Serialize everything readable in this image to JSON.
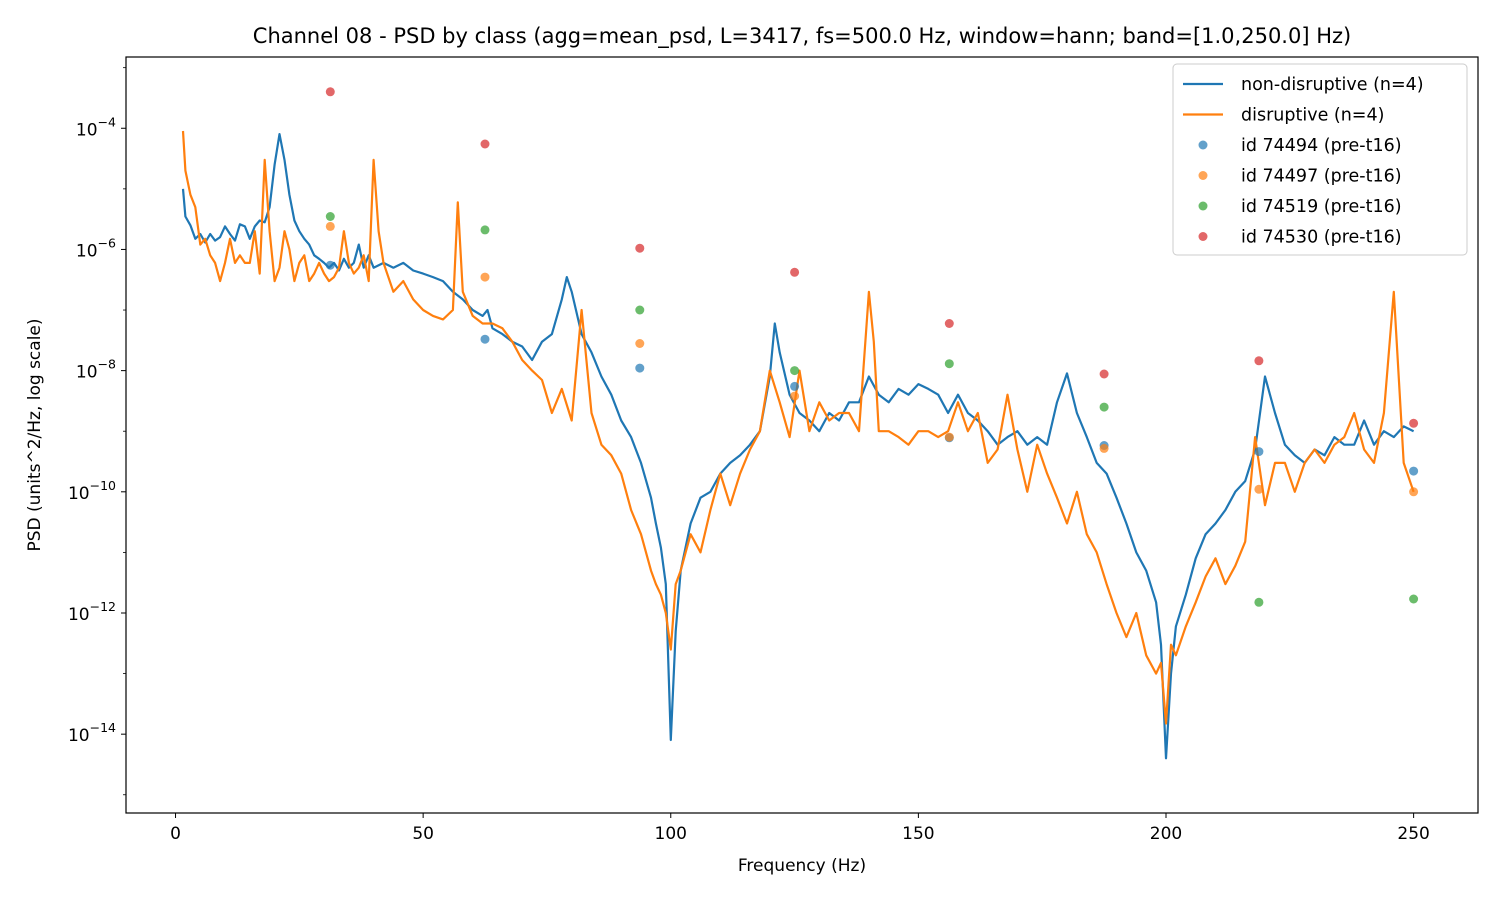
{
  "chart_data": {
    "type": "line",
    "title": "Channel 08 - PSD by class (agg=mean_psd, L=3417, fs=500.0 Hz, window=hann; band=[1.0,250.0] Hz)",
    "xlabel": "Frequency (Hz)",
    "ylabel": "PSD (units^2/Hz, log scale)",
    "xlim": [
      -10,
      263
    ],
    "ylim": [
      5e-16,
      0.0015
    ],
    "yscale": "log",
    "grid": false,
    "legend_position": "top-right",
    "xticks": [
      {
        "value": 0,
        "label": "0"
      },
      {
        "value": 50,
        "label": "50"
      },
      {
        "value": 100,
        "label": "100"
      },
      {
        "value": 150,
        "label": "150"
      },
      {
        "value": 200,
        "label": "200"
      },
      {
        "value": 250,
        "label": "250"
      }
    ],
    "yticks": [
      {
        "exp": -14,
        "base": "10",
        "sup": "−14"
      },
      {
        "exp": -12,
        "base": "10",
        "sup": "−12"
      },
      {
        "exp": -10,
        "base": "10",
        "sup": "−10"
      },
      {
        "exp": -8,
        "base": "10",
        "sup": "−8"
      },
      {
        "exp": -6,
        "base": "10",
        "sup": "−6"
      },
      {
        "exp": -4,
        "base": "10",
        "sup": "−4"
      }
    ],
    "series": [
      {
        "name": "non-disruptive (n=4)",
        "color": "#1f77b4",
        "x": [
          1.5,
          2,
          3,
          4,
          5,
          6,
          7,
          8,
          9,
          10,
          11,
          12,
          13,
          14,
          15,
          16,
          17,
          18,
          19,
          20,
          21,
          22,
          23,
          24,
          25,
          26,
          27,
          28,
          29,
          30,
          31,
          32,
          33,
          34,
          35,
          36,
          37,
          38,
          39,
          40,
          42,
          44,
          46,
          48,
          50,
          52,
          54,
          56,
          58,
          60,
          62,
          63,
          64,
          66,
          68,
          70,
          72,
          74,
          76,
          78,
          79,
          80,
          82,
          84,
          86,
          88,
          90,
          92,
          94,
          96,
          97,
          98,
          99,
          100,
          101,
          102,
          104,
          106,
          108,
          110,
          112,
          114,
          116,
          118,
          120,
          121,
          122,
          124,
          126,
          128,
          130,
          132,
          134,
          136,
          138,
          140,
          142,
          144,
          146,
          148,
          150,
          152,
          154,
          156,
          158,
          160,
          162,
          164,
          166,
          168,
          170,
          172,
          174,
          176,
          178,
          180,
          182,
          184,
          186,
          188,
          190,
          192,
          194,
          196,
          198,
          199,
          200,
          201,
          202,
          204,
          206,
          208,
          210,
          212,
          214,
          216,
          218,
          220,
          222,
          224,
          226,
          228,
          230,
          232,
          234,
          236,
          238,
          240,
          242,
          244,
          246,
          248,
          250
        ],
        "y": [
          1e-05,
          3.5e-06,
          2.5e-06,
          1.5e-06,
          1.8e-06,
          1.3e-06,
          1.8e-06,
          1.4e-06,
          1.6e-06,
          2.4e-06,
          1.8e-06,
          1.4e-06,
          2.6e-06,
          2.4e-06,
          1.5e-06,
          2.4e-06,
          3e-06,
          2.8e-06,
          5e-06,
          2.5e-05,
          8e-05,
          3e-05,
          8e-06,
          3e-06,
          2e-06,
          1.5e-06,
          1.2e-06,
          8e-07,
          7e-07,
          6e-07,
          5e-07,
          6e-07,
          4.5e-07,
          7e-07,
          5e-07,
          6e-07,
          1.2e-06,
          5e-07,
          8e-07,
          5e-07,
          6e-07,
          5e-07,
          6e-07,
          4.5e-07,
          4e-07,
          3.5e-07,
          3e-07,
          2e-07,
          1.5e-07,
          1e-07,
          8e-08,
          1e-07,
          5e-08,
          4e-08,
          3e-08,
          2.5e-08,
          1.5e-08,
          3e-08,
          4e-08,
          1.5e-07,
          3.5e-07,
          2e-07,
          4e-08,
          2e-08,
          8e-09,
          4e-09,
          1.5e-09,
          8e-10,
          3e-10,
          8e-11,
          3e-11,
          1.2e-11,
          3e-12,
          8e-15,
          5e-13,
          5e-12,
          3e-11,
          8e-11,
          1e-10,
          2e-10,
          3e-10,
          4e-10,
          6e-10,
          1e-09,
          8e-09,
          6e-08,
          2e-08,
          4e-09,
          2e-09,
          1.5e-09,
          1e-09,
          2e-09,
          1.5e-09,
          3e-09,
          3e-09,
          8e-09,
          4e-09,
          3e-09,
          5e-09,
          4e-09,
          6e-09,
          5e-09,
          4e-09,
          2e-09,
          4e-09,
          2e-09,
          1.5e-09,
          1e-09,
          6e-10,
          8e-10,
          1e-09,
          6e-10,
          8e-10,
          6e-10,
          3e-09,
          9e-09,
          2e-09,
          8e-10,
          3e-10,
          2e-10,
          8e-11,
          3e-11,
          1e-11,
          5e-12,
          1.5e-12,
          3e-13,
          4e-15,
          1e-13,
          6e-13,
          2e-12,
          8e-12,
          2e-11,
          3e-11,
          5e-11,
          1e-10,
          1.5e-10,
          5e-10,
          8e-09,
          2e-09,
          6e-10,
          4e-10,
          3e-10,
          5e-10,
          4e-10,
          8e-10,
          6e-10,
          6e-10,
          1.5e-09,
          6e-10,
          1e-09,
          8e-10,
          1.2e-09,
          1e-09
        ]
      },
      {
        "name": "disruptive (n=4)",
        "color": "#ff7f0e",
        "x": [
          1.5,
          2,
          3,
          4,
          5,
          6,
          7,
          8,
          9,
          10,
          11,
          12,
          13,
          14,
          15,
          16,
          17,
          18,
          19,
          20,
          21,
          22,
          23,
          24,
          25,
          26,
          27,
          28,
          29,
          30,
          31,
          32,
          33,
          34,
          35,
          36,
          37,
          38,
          39,
          40,
          41,
          42,
          44,
          46,
          48,
          50,
          52,
          54,
          56,
          57,
          58,
          60,
          62,
          64,
          66,
          68,
          70,
          72,
          74,
          76,
          78,
          80,
          82,
          84,
          86,
          88,
          90,
          92,
          94,
          96,
          97,
          98,
          99,
          100,
          101,
          102,
          104,
          106,
          108,
          110,
          112,
          114,
          116,
          118,
          120,
          122,
          124,
          126,
          128,
          130,
          132,
          134,
          136,
          138,
          140,
          141,
          142,
          144,
          146,
          148,
          150,
          152,
          154,
          156,
          158,
          160,
          162,
          164,
          166,
          168,
          170,
          172,
          174,
          176,
          178,
          180,
          182,
          184,
          186,
          188,
          190,
          192,
          194,
          196,
          198,
          199,
          200,
          201,
          202,
          204,
          206,
          208,
          210,
          212,
          214,
          216,
          218,
          220,
          222,
          224,
          226,
          228,
          230,
          232,
          234,
          236,
          238,
          240,
          242,
          244,
          246,
          248,
          250
        ],
        "y": [
          9e-05,
          2e-05,
          8e-06,
          5e-06,
          1.2e-06,
          1.5e-06,
          8e-07,
          6e-07,
          3e-07,
          6e-07,
          1.5e-06,
          6e-07,
          8e-07,
          6e-07,
          6e-07,
          2e-06,
          4e-07,
          3e-05,
          2e-06,
          3e-07,
          5e-07,
          2e-06,
          1e-06,
          3e-07,
          6e-07,
          8e-07,
          3e-07,
          4e-07,
          6e-07,
          4e-07,
          3e-07,
          3.5e-07,
          5e-07,
          2e-06,
          6e-07,
          4e-07,
          5e-07,
          8e-07,
          3e-07,
          3e-05,
          2e-06,
          6e-07,
          2e-07,
          3e-07,
          1.5e-07,
          1e-07,
          8e-08,
          7e-08,
          1e-07,
          6e-06,
          2e-07,
          8e-08,
          6e-08,
          6e-08,
          5e-08,
          3e-08,
          1.5e-08,
          1e-08,
          7e-09,
          2e-09,
          5e-09,
          1.5e-09,
          1e-07,
          2e-09,
          6e-10,
          4e-10,
          2e-10,
          5e-11,
          2e-11,
          5e-12,
          3e-12,
          2e-12,
          1e-12,
          2.5e-13,
          3e-12,
          5e-12,
          2e-11,
          1e-11,
          5e-11,
          2e-10,
          6e-11,
          2e-10,
          5e-10,
          1e-09,
          1e-08,
          3e-09,
          8e-10,
          1e-08,
          1e-09,
          3e-09,
          1.5e-09,
          2e-09,
          2e-09,
          1e-09,
          2e-07,
          3e-08,
          1e-09,
          1e-09,
          8e-10,
          6e-10,
          1e-09,
          1e-09,
          8e-10,
          1e-09,
          3e-09,
          1e-09,
          2e-09,
          3e-10,
          5e-10,
          4e-09,
          5e-10,
          1e-10,
          6e-10,
          2e-10,
          8e-11,
          3e-11,
          1e-10,
          2e-11,
          1e-11,
          3e-12,
          1e-12,
          4e-13,
          1e-12,
          2e-13,
          1e-13,
          1.5e-13,
          1.5e-14,
          3e-13,
          2e-13,
          6e-13,
          1.5e-12,
          4e-12,
          8e-12,
          3e-12,
          6e-12,
          1.5e-11,
          8e-10,
          6e-11,
          3e-10,
          3e-10,
          1e-10,
          3e-10,
          5e-10,
          3e-10,
          6e-10,
          8e-10,
          2e-09,
          5e-10,
          3e-10,
          2e-09,
          2e-07,
          3e-10,
          1e-10
        ]
      }
    ],
    "scatter_series": [
      {
        "name": "id 74494 (pre-t16)",
        "color": "#1f77b4",
        "points": [
          [
            31.25,
            5.5e-07
          ],
          [
            62.5,
            3.3e-08
          ],
          [
            93.75,
            1.1e-08
          ],
          [
            125,
            5.5e-09
          ],
          [
            156.25,
            7.8e-10
          ],
          [
            187.5,
            5.8e-10
          ],
          [
            218.75,
            4.6e-10
          ],
          [
            250,
            2.2e-10
          ]
        ]
      },
      {
        "name": "id 74497 (pre-t16)",
        "color": "#ff7f0e",
        "points": [
          [
            31.25,
            2.4e-06
          ],
          [
            62.5,
            3.5e-07
          ],
          [
            93.75,
            2.8e-08
          ],
          [
            125,
            3.8e-09
          ],
          [
            156.25,
            8e-10
          ],
          [
            187.5,
            5.2e-10
          ],
          [
            218.75,
            1.1e-10
          ],
          [
            250,
            1e-10
          ]
        ]
      },
      {
        "name": "id 74519 (pre-t16)",
        "color": "#2ca02c",
        "points": [
          [
            31.25,
            3.5e-06
          ],
          [
            62.5,
            2.1e-06
          ],
          [
            93.75,
            1e-07
          ],
          [
            125,
            1e-08
          ],
          [
            156.25,
            1.3e-08
          ],
          [
            187.5,
            2.5e-09
          ],
          [
            218.75,
            1.5e-12
          ],
          [
            250,
            1.7e-12
          ]
        ]
      },
      {
        "name": "id 74530 (pre-t16)",
        "color": "#d62728",
        "points": [
          [
            31.25,
            0.0004
          ],
          [
            62.5,
            5.5e-05
          ],
          [
            93.75,
            1.05e-06
          ],
          [
            125,
            4.2e-07
          ],
          [
            156.25,
            6e-08
          ],
          [
            187.5,
            8.8e-09
          ],
          [
            218.75,
            1.45e-08
          ],
          [
            250,
            1.35e-09
          ]
        ]
      }
    ]
  }
}
